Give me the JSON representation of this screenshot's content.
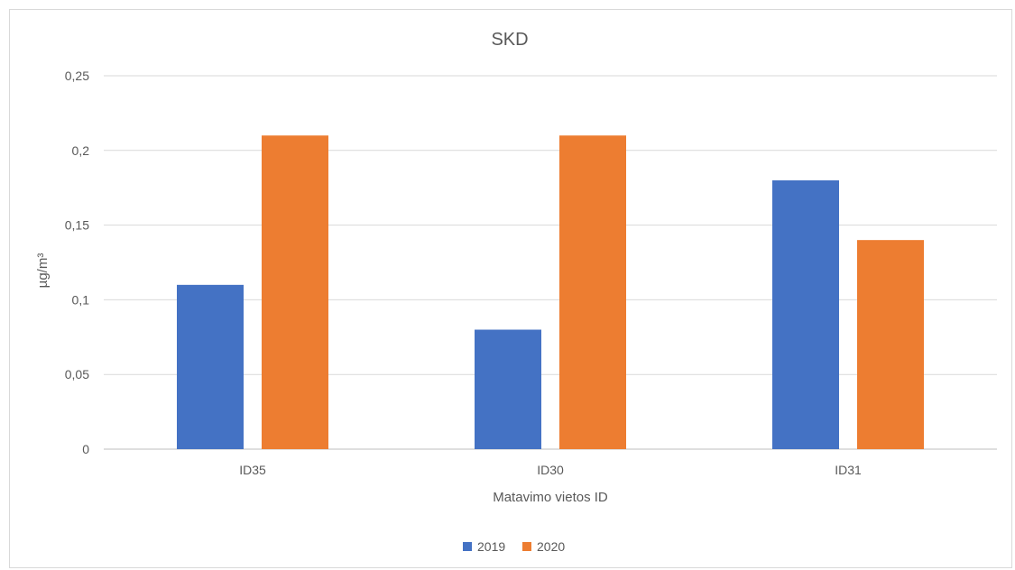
{
  "chart_data": {
    "type": "bar",
    "title": "SKD",
    "xlabel": "Matavimo vietos ID",
    "ylabel": "µg/m³",
    "categories": [
      "ID35",
      "ID30",
      "ID31"
    ],
    "series": [
      {
        "name": "2019",
        "values": [
          0.11,
          0.08,
          0.18
        ],
        "color": "#4472C4"
      },
      {
        "name": "2020",
        "values": [
          0.21,
          0.21,
          0.14
        ],
        "color": "#ED7D31"
      }
    ],
    "ylim": [
      0,
      0.25
    ],
    "yticks": [
      0,
      0.05,
      0.1,
      0.15,
      0.2,
      0.25
    ],
    "ytick_labels": [
      "0",
      "0,05",
      "0,1",
      "0,15",
      "0,2",
      "0,25"
    ],
    "grid": true,
    "legend": "bottom-center"
  }
}
